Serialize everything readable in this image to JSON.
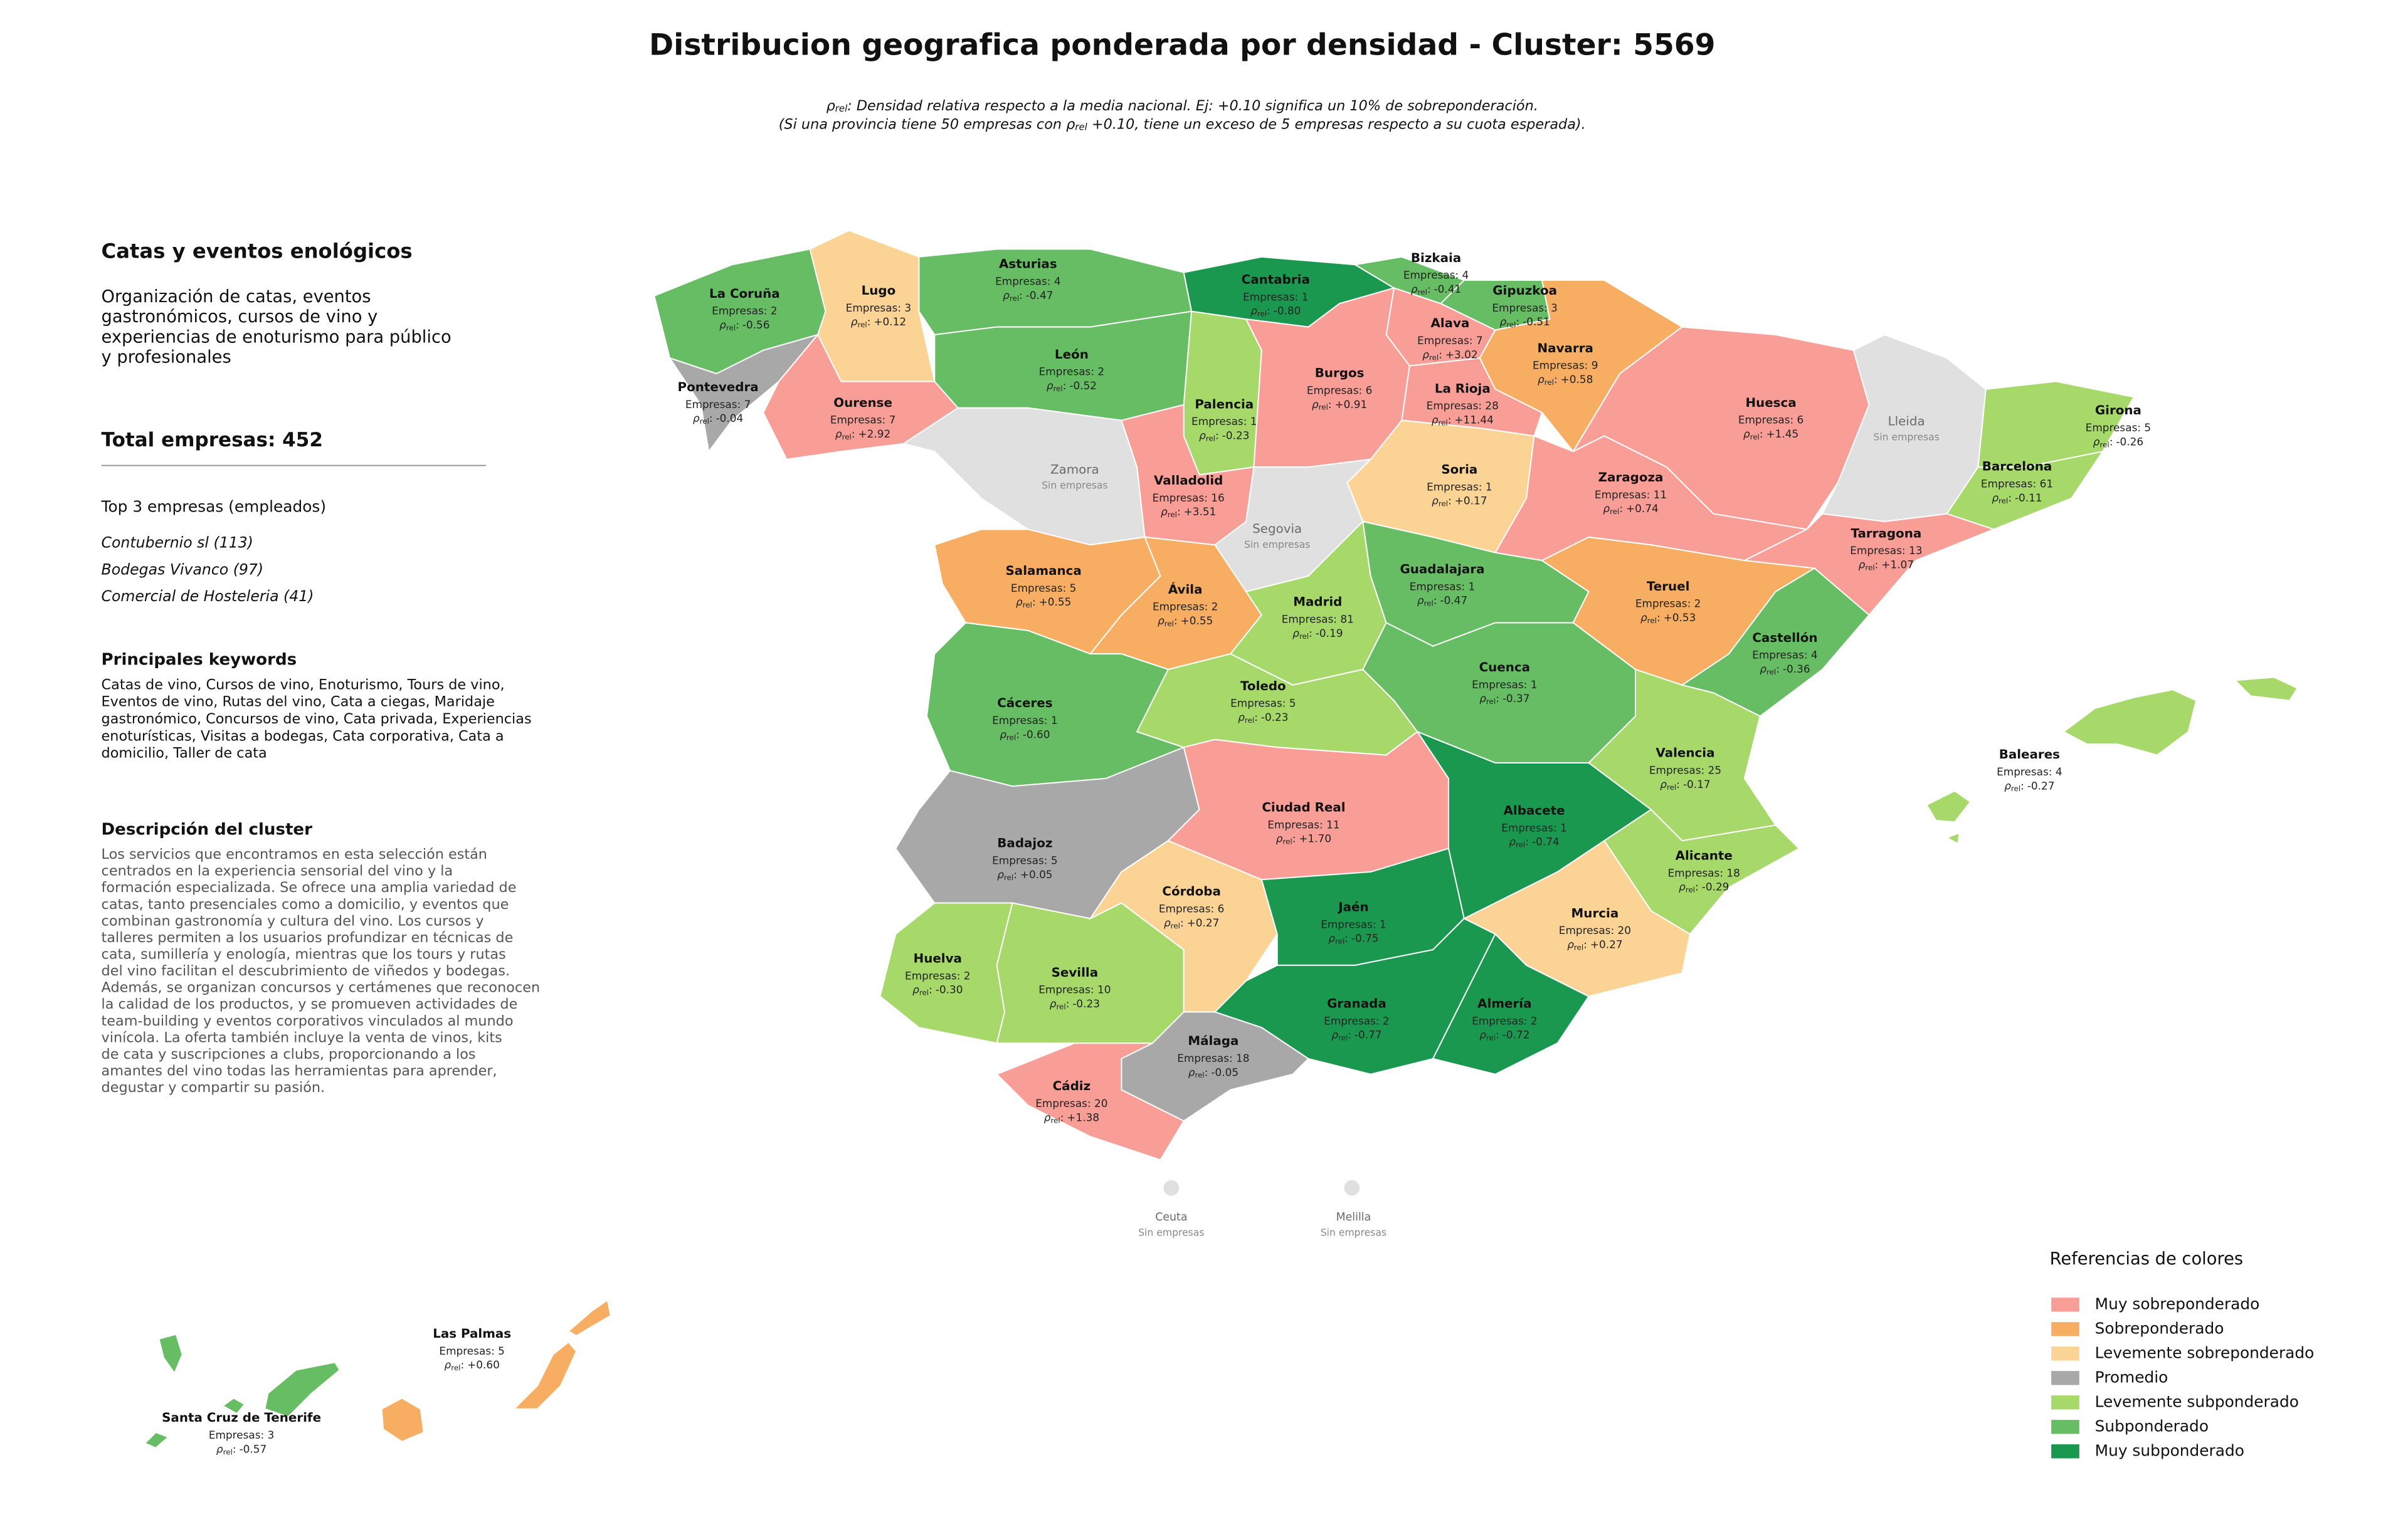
{
  "title": "Distribucion geografica ponderada por densidad - Cluster: 5569",
  "subtitle": {
    "line1": {
      "symbol": "ρ",
      "sub": "rel",
      "text": ": Densidad relativa respecto a la media nacional. Ej: +0.10 significa un 10% de sobreponderación."
    },
    "line2": {
      "before": "(Si una provincia tiene 50 empresas con ",
      "symbol": "ρ",
      "sub": "rel",
      "after": " +0.10, tiene un exceso de 5 empresas respecto a su cuota esperada)."
    }
  },
  "sidebar": {
    "heading": "Catas y eventos enológicos",
    "intro": [
      "Organización de catas, eventos",
      "gastronómicos, cursos de vino y",
      "experiencias de enoturismo para público",
      "y profesionales"
    ],
    "total": "Total empresas: 452",
    "top_title": "Top 3 empresas (empleados)",
    "top": [
      "Contubernio sl (113)",
      "Bodegas Vivanco (97)",
      "Comercial de Hosteleria (41)"
    ],
    "keywords_title": "Principales keywords",
    "keywords": [
      "Catas de vino, Cursos de vino, Enoturismo, Tours de vino,",
      "Eventos de vino, Rutas del vino, Cata a ciegas, Maridaje",
      "gastronómico, Concursos de vino, Cata privada, Experiencias",
      "enoturísticas, Visitas a bodegas, Cata corporativa, Cata a",
      "domicilio, Taller de cata"
    ],
    "description_title": "Descripción del cluster",
    "description": [
      "Los servicios que encontramos en esta selección están",
      "centrados en la experiencia sensorial del vino y la",
      "formación especializada. Se ofrece una amplia variedad de",
      "catas, tanto presenciales como a domicilio, y eventos que",
      "combinan gastronomía y cultura del vino. Los cursos y",
      "talleres permiten a los usuarios profundizar en técnicas de",
      "cata, sumillería y enología, mientras que los tours y rutas",
      "del vino facilitan el descubrimiento de viñedos y bodegas.",
      "Además, se organizan concursos y certámenes que reconocen",
      "la calidad de los productos, y se promueven actividades de",
      "team-building y eventos corporativos vinculados al mundo",
      "vinícola. La oferta también incluye la venta de vinos, kits",
      "de cata y suscripciones a clubs, proporcionando a los",
      "amantes del vino todas las herramientas para aprender,",
      "degustar y compartir su pasión."
    ]
  },
  "map_labels": {
    "rho_symbol": "ρ",
    "rho_sub": "rel",
    "rho_separator": ":"
  },
  "no_data_color": "#e0e0e0",
  "legend": {
    "title": "Referencias de colores",
    "items": [
      {
        "name": "Muy sobreponderado",
        "color": "#f99d97"
      },
      {
        "name": "Sobreponderado",
        "color": "#f8ae62"
      },
      {
        "name": "Levemente sobreponderado",
        "color": "#fbd495"
      },
      {
        "name": "Promedio",
        "color": "#a8a8a8"
      },
      {
        "name": "Levemente subponderado",
        "color": "#a6d96a"
      },
      {
        "name": "Subponderado",
        "color": "#66bd63"
      },
      {
        "name": "Muy subponderado",
        "color": "#1a9850"
      }
    ]
  },
  "provinces": [
    {
      "name": "La Coruña",
      "level": "Subponderado",
      "empresas": "Empresas: 2",
      "rho": "-0.56"
    },
    {
      "name": "Lugo",
      "level": "Levemente sobreponderado",
      "empresas": "Empresas: 3",
      "rho": "+0.12"
    },
    {
      "name": "Pontevedra",
      "level": "Promedio",
      "empresas": "Empresas: 7",
      "rho": "-0.04"
    },
    {
      "name": "Ourense",
      "level": "Muy sobreponderado",
      "empresas": "Empresas: 7",
      "rho": "+2.92"
    },
    {
      "name": "Asturias",
      "level": "Subponderado",
      "empresas": "Empresas: 4",
      "rho": "-0.47"
    },
    {
      "name": "Cantabria",
      "level": "Muy subponderado",
      "empresas": "Empresas: 1",
      "rho": "-0.80"
    },
    {
      "name": "Bizkaia",
      "level": "Subponderado",
      "empresas": "Empresas: 4",
      "rho": "-0.41"
    },
    {
      "name": "Gipuzkoa",
      "level": "Subponderado",
      "empresas": "Empresas: 3",
      "rho": "-0.51"
    },
    {
      "name": "Alava",
      "level": "Muy sobreponderado",
      "empresas": "Empresas: 7",
      "rho": "+3.02"
    },
    {
      "name": "Navarra",
      "level": "Sobreponderado",
      "empresas": "Empresas: 9",
      "rho": "+0.58"
    },
    {
      "name": "León",
      "level": "Subponderado",
      "empresas": "Empresas: 2",
      "rho": "-0.52"
    },
    {
      "name": "Palencia",
      "level": "Levemente subponderado",
      "empresas": "Empresas: 1",
      "rho": "-0.23"
    },
    {
      "name": "Burgos",
      "level": "Muy sobreponderado",
      "empresas": "Empresas: 6",
      "rho": "+0.91"
    },
    {
      "name": "La Rioja",
      "level": "Muy sobreponderado",
      "empresas": "Empresas: 28",
      "rho": "+11.44"
    },
    {
      "name": "Zamora",
      "level": null,
      "status": "Sin empresas"
    },
    {
      "name": "Valladolid",
      "level": "Muy sobreponderado",
      "empresas": "Empresas: 16",
      "rho": "+3.51"
    },
    {
      "name": "Soria",
      "level": "Levemente sobreponderado",
      "empresas": "Empresas: 1",
      "rho": "+0.17"
    },
    {
      "name": "Segovia",
      "level": null,
      "status": "Sin empresas"
    },
    {
      "name": "Huesca",
      "level": "Muy sobreponderado",
      "empresas": "Empresas: 6",
      "rho": "+1.45"
    },
    {
      "name": "Lleida",
      "level": null,
      "status": "Sin empresas"
    },
    {
      "name": "Girona",
      "level": "Levemente subponderado",
      "empresas": "Empresas: 5",
      "rho": "-0.26"
    },
    {
      "name": "Barcelona",
      "level": "Levemente subponderado",
      "empresas": "Empresas: 61",
      "rho": "-0.11"
    },
    {
      "name": "Zaragoza",
      "level": "Muy sobreponderado",
      "empresas": "Empresas: 11",
      "rho": "+0.74"
    },
    {
      "name": "Tarragona",
      "level": "Muy sobreponderado",
      "empresas": "Empresas: 13",
      "rho": "+1.07"
    },
    {
      "name": "Salamanca",
      "level": "Sobreponderado",
      "empresas": "Empresas: 5",
      "rho": "+0.55"
    },
    {
      "name": "Ávila",
      "level": "Sobreponderado",
      "empresas": "Empresas: 2",
      "rho": "+0.55"
    },
    {
      "name": "Madrid",
      "level": "Levemente subponderado",
      "empresas": "Empresas: 81",
      "rho": "-0.19"
    },
    {
      "name": "Guadalajara",
      "level": "Subponderado",
      "empresas": "Empresas: 1",
      "rho": "-0.47"
    },
    {
      "name": "Teruel",
      "level": "Sobreponderado",
      "empresas": "Empresas: 2",
      "rho": "+0.53"
    },
    {
      "name": "Castellón",
      "level": "Subponderado",
      "empresas": "Empresas: 4",
      "rho": "-0.36"
    },
    {
      "name": "Cáceres",
      "level": "Subponderado",
      "empresas": "Empresas: 1",
      "rho": "-0.60"
    },
    {
      "name": "Toledo",
      "level": "Levemente subponderado",
      "empresas": "Empresas: 5",
      "rho": "-0.23"
    },
    {
      "name": "Cuenca",
      "level": "Subponderado",
      "empresas": "Empresas: 1",
      "rho": "-0.37"
    },
    {
      "name": "Valencia",
      "level": "Levemente subponderado",
      "empresas": "Empresas: 25",
      "rho": "-0.17"
    },
    {
      "name": "Badajoz",
      "level": "Promedio",
      "empresas": "Empresas: 5",
      "rho": "+0.05"
    },
    {
      "name": "Ciudad Real",
      "level": "Muy sobreponderado",
      "empresas": "Empresas: 11",
      "rho": "+1.70"
    },
    {
      "name": "Albacete",
      "level": "Muy subponderado",
      "empresas": "Empresas: 1",
      "rho": "-0.74"
    },
    {
      "name": "Alicante",
      "level": "Levemente subponderado",
      "empresas": "Empresas: 18",
      "rho": "-0.29"
    },
    {
      "name": "Huelva",
      "level": "Levemente subponderado",
      "empresas": "Empresas: 2",
      "rho": "-0.30"
    },
    {
      "name": "Sevilla",
      "level": "Levemente subponderado",
      "empresas": "Empresas: 10",
      "rho": "-0.23"
    },
    {
      "name": "Córdoba",
      "level": "Levemente sobreponderado",
      "empresas": "Empresas: 6",
      "rho": "+0.27"
    },
    {
      "name": "Jaén",
      "level": "Muy subponderado",
      "empresas": "Empresas: 1",
      "rho": "-0.75"
    },
    {
      "name": "Murcia",
      "level": "Levemente sobreponderado",
      "empresas": "Empresas: 20",
      "rho": "+0.27"
    },
    {
      "name": "Granada",
      "level": "Muy subponderado",
      "empresas": "Empresas: 2",
      "rho": "-0.77"
    },
    {
      "name": "Almería",
      "level": "Muy subponderado",
      "empresas": "Empresas: 2",
      "rho": "-0.72"
    },
    {
      "name": "Málaga",
      "level": "Promedio",
      "empresas": "Empresas: 18",
      "rho": "-0.05"
    },
    {
      "name": "Cádiz",
      "level": "Muy sobreponderado",
      "empresas": "Empresas: 20",
      "rho": "+1.38"
    },
    {
      "name": "Baleares",
      "level": "Levemente subponderado",
      "empresas": "Empresas: 4",
      "rho": "-0.27"
    },
    {
      "name": "Las Palmas",
      "level": "Sobreponderado",
      "empresas": "Empresas: 5",
      "rho": "+0.60"
    },
    {
      "name": "Santa Cruz de Tenerife",
      "level": "Subponderado",
      "empresas": "Empresas: 3",
      "rho": "-0.57"
    },
    {
      "name": "Ceuta",
      "level": null,
      "status": "Sin empresas"
    },
    {
      "name": "Melilla",
      "level": null,
      "status": "Sin empresas"
    }
  ]
}
